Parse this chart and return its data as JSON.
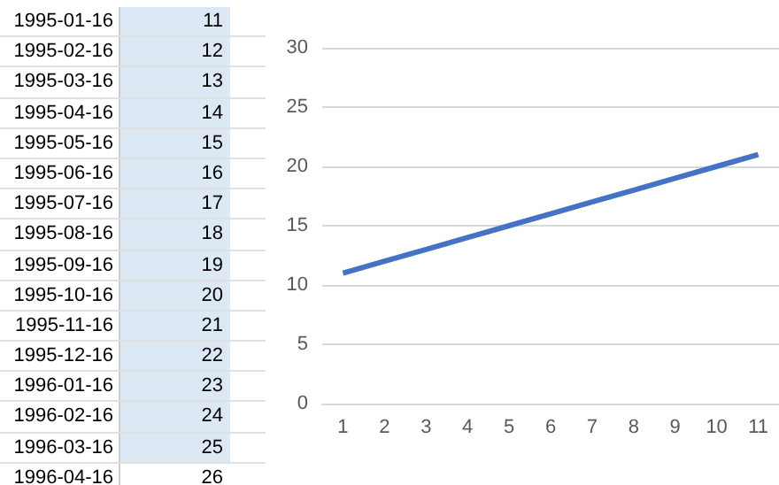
{
  "chart_data": {
    "type": "line",
    "categories": [
      "1",
      "2",
      "3",
      "4",
      "5",
      "6",
      "7",
      "8",
      "9",
      "10",
      "11"
    ],
    "series": [
      {
        "color": "#4472c4",
        "values": [
          11,
          12,
          13,
          14,
          15,
          16,
          17,
          18,
          19,
          20,
          21
        ]
      }
    ],
    "ylim": [
      0,
      30
    ],
    "yticks": [
      0,
      5,
      10,
      15,
      20,
      25,
      30
    ],
    "grid": "y",
    "line_style": "solid",
    "annotations": [
      "1995-01-16",
      "11",
      "1995-02-16",
      "12",
      "1995-03-16",
      "13",
      "1995-04-16",
      "14",
      "1995-05-16",
      "15",
      "1995-06-16",
      "16",
      "1995-07-16",
      "17",
      "1995-08-16",
      "18",
      "1995-09-16",
      "19",
      "1995-10-16",
      "20",
      "1995-11-16",
      "21",
      "1995-12-16",
      "22",
      "1996-01-16",
      "23",
      "1996-02-16",
      "24",
      "1996-03-16",
      "25",
      "1996-04-16",
      "26"
    ]
  }
}
